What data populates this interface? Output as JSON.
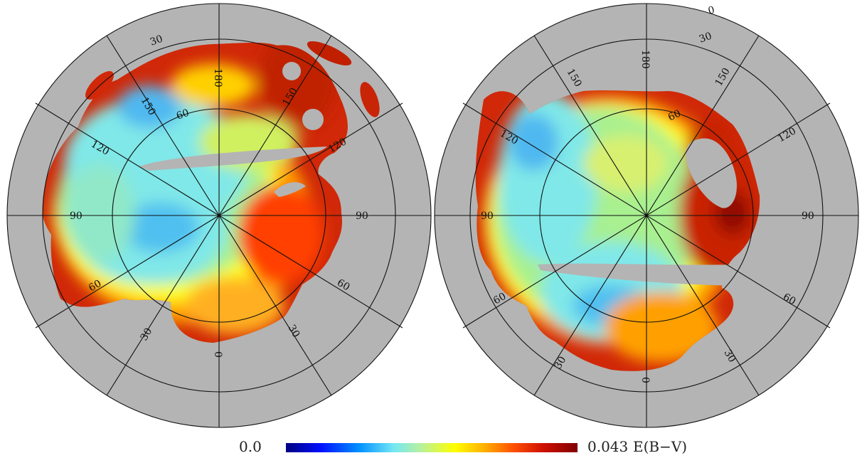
{
  "colorbar": {
    "min_label": "0.0",
    "max_label": "0.043",
    "unit_label": "E(B−V)",
    "colormap": [
      "#00007f",
      "#0010ff",
      "#0090ff",
      "#74e8f4",
      "#b6f0a0",
      "#ffff00",
      "#ffb000",
      "#ff5000",
      "#d01000",
      "#7f0000"
    ]
  },
  "colors": {
    "masked": "#b4b4b4",
    "grid": "#111111",
    "background": "#ffffff"
  },
  "north_map": {
    "labels": [
      "180",
      "150",
      "120",
      "90",
      "60",
      "30",
      "0",
      "30",
      "60",
      "90",
      "120",
      "150",
      "30",
      "60"
    ],
    "ring_labels": [
      "30",
      "60"
    ]
  },
  "south_map": {
    "labels": [
      "180",
      "150",
      "120",
      "90",
      "60",
      "30",
      "0",
      "30",
      "60",
      "90",
      "120",
      "150",
      "0",
      "30",
      "60"
    ],
    "ring_labels": [
      "0",
      "30",
      "60"
    ]
  }
}
